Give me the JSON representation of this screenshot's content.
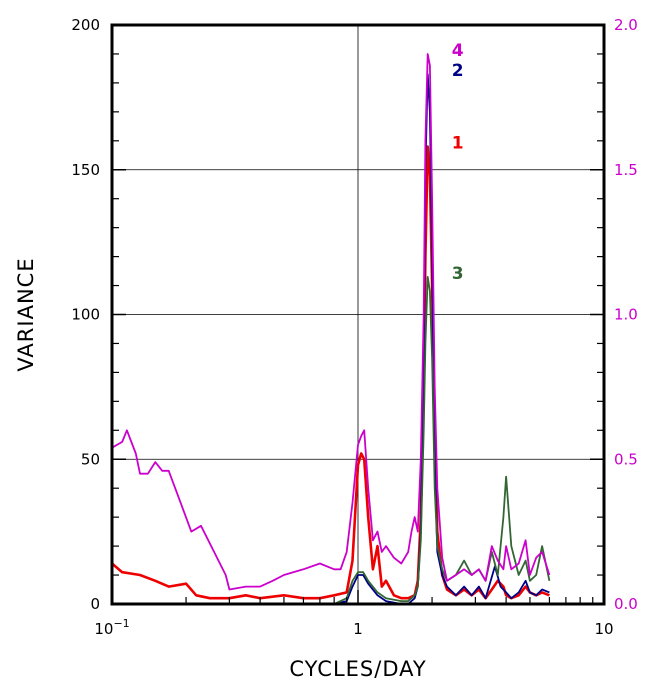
{
  "chart_data": {
    "type": "line",
    "xlabel": "CYCLES/DAY",
    "ylabel": "VARIANCE",
    "x_scale": "log",
    "xlim": [
      0.1,
      10
    ],
    "ylim": [
      0,
      200
    ],
    "ylim_right": [
      0,
      2.0
    ],
    "x_ticks": [
      {
        "value": 0.1,
        "label_base": "10",
        "label_exp": "−1"
      },
      {
        "value": 1,
        "label_base": "1",
        "label_exp": ""
      },
      {
        "value": 10,
        "label_base": "10",
        "label_exp": ""
      }
    ],
    "y_ticks_left": [
      {
        "value": 0,
        "label": "0"
      },
      {
        "value": 50,
        "label": "50"
      },
      {
        "value": 100,
        "label": "100"
      },
      {
        "value": 150,
        "label": "150"
      },
      {
        "value": 200,
        "label": "200"
      }
    ],
    "y_ticks_right": [
      {
        "value": 0,
        "label": "0.0"
      },
      {
        "value": 0.5,
        "label": "0.5"
      },
      {
        "value": 1.0,
        "label": "1.0"
      },
      {
        "value": 1.5,
        "label": "1.5"
      },
      {
        "value": 2.0,
        "label": "2.0"
      }
    ],
    "grid": true,
    "right_axis_color": "#cc00cc",
    "series": [
      {
        "label": "1",
        "color": "#ee0000",
        "axis": "left",
        "points": [
          [
            0.1,
            14
          ],
          [
            0.11,
            11
          ],
          [
            0.13,
            10
          ],
          [
            0.15,
            8
          ],
          [
            0.17,
            6
          ],
          [
            0.2,
            7
          ],
          [
            0.22,
            3
          ],
          [
            0.25,
            2
          ],
          [
            0.3,
            2
          ],
          [
            0.35,
            3
          ],
          [
            0.4,
            2
          ],
          [
            0.5,
            3
          ],
          [
            0.6,
            2
          ],
          [
            0.7,
            2
          ],
          [
            0.8,
            3
          ],
          [
            0.9,
            4
          ],
          [
            0.95,
            15
          ],
          [
            0.98,
            35
          ],
          [
            1.0,
            48
          ],
          [
            1.03,
            52
          ],
          [
            1.06,
            50
          ],
          [
            1.1,
            30
          ],
          [
            1.15,
            12
          ],
          [
            1.2,
            20
          ],
          [
            1.25,
            6
          ],
          [
            1.3,
            8
          ],
          [
            1.4,
            3
          ],
          [
            1.5,
            2
          ],
          [
            1.6,
            2
          ],
          [
            1.7,
            3
          ],
          [
            1.75,
            8
          ],
          [
            1.8,
            30
          ],
          [
            1.85,
            75
          ],
          [
            1.88,
            120
          ],
          [
            1.92,
            158
          ],
          [
            1.96,
            148
          ],
          [
            2.0,
            110
          ],
          [
            2.05,
            60
          ],
          [
            2.1,
            25
          ],
          [
            2.2,
            10
          ],
          [
            2.3,
            5
          ],
          [
            2.5,
            3
          ],
          [
            2.7,
            5
          ],
          [
            2.9,
            3
          ],
          [
            3.1,
            5
          ],
          [
            3.3,
            2
          ],
          [
            3.5,
            5
          ],
          [
            3.7,
            8
          ],
          [
            3.9,
            6
          ],
          [
            4.0,
            3
          ],
          [
            4.2,
            2
          ],
          [
            4.5,
            3
          ],
          [
            4.8,
            6
          ],
          [
            5.0,
            4
          ],
          [
            5.3,
            3
          ],
          [
            5.6,
            4
          ],
          [
            6.0,
            3
          ]
        ]
      },
      {
        "label": "2",
        "color": "#000088",
        "axis": "left",
        "points": [
          [
            0.1,
            0
          ],
          [
            0.2,
            0
          ],
          [
            0.3,
            0
          ],
          [
            0.5,
            0
          ],
          [
            0.7,
            0
          ],
          [
            0.8,
            0
          ],
          [
            0.9,
            1
          ],
          [
            0.95,
            6
          ],
          [
            1.0,
            10
          ],
          [
            1.05,
            10
          ],
          [
            1.1,
            7
          ],
          [
            1.2,
            3
          ],
          [
            1.3,
            1
          ],
          [
            1.5,
            0
          ],
          [
            1.6,
            0
          ],
          [
            1.7,
            2
          ],
          [
            1.75,
            6
          ],
          [
            1.8,
            25
          ],
          [
            1.85,
            80
          ],
          [
            1.88,
            150
          ],
          [
            1.92,
            183
          ],
          [
            1.96,
            170
          ],
          [
            2.0,
            120
          ],
          [
            2.05,
            50
          ],
          [
            2.1,
            18
          ],
          [
            2.2,
            10
          ],
          [
            2.3,
            6
          ],
          [
            2.5,
            3
          ],
          [
            2.7,
            6
          ],
          [
            2.9,
            3
          ],
          [
            3.1,
            6
          ],
          [
            3.3,
            2
          ],
          [
            3.6,
            13
          ],
          [
            3.8,
            6
          ],
          [
            4.0,
            4
          ],
          [
            4.2,
            2
          ],
          [
            4.5,
            4
          ],
          [
            4.8,
            8
          ],
          [
            5.0,
            4
          ],
          [
            5.3,
            3
          ],
          [
            5.6,
            5
          ],
          [
            6.0,
            4
          ]
        ]
      },
      {
        "label": "3",
        "color": "#336633",
        "axis": "left",
        "points": [
          [
            0.1,
            0
          ],
          [
            0.2,
            0
          ],
          [
            0.3,
            0
          ],
          [
            0.5,
            0
          ],
          [
            0.7,
            0
          ],
          [
            0.8,
            0
          ],
          [
            0.9,
            2
          ],
          [
            0.95,
            8
          ],
          [
            1.0,
            11
          ],
          [
            1.05,
            11
          ],
          [
            1.1,
            8
          ],
          [
            1.2,
            4
          ],
          [
            1.3,
            2
          ],
          [
            1.5,
            1
          ],
          [
            1.6,
            1
          ],
          [
            1.7,
            3
          ],
          [
            1.75,
            6
          ],
          [
            1.8,
            22
          ],
          [
            1.85,
            60
          ],
          [
            1.88,
            90
          ],
          [
            1.92,
            113
          ],
          [
            1.96,
            108
          ],
          [
            2.0,
            85
          ],
          [
            2.05,
            40
          ],
          [
            2.1,
            20
          ],
          [
            2.2,
            12
          ],
          [
            2.3,
            8
          ],
          [
            2.5,
            10
          ],
          [
            2.7,
            15
          ],
          [
            2.9,
            10
          ],
          [
            3.1,
            12
          ],
          [
            3.3,
            8
          ],
          [
            3.5,
            18
          ],
          [
            3.7,
            10
          ],
          [
            3.9,
            30
          ],
          [
            4.0,
            44
          ],
          [
            4.2,
            20
          ],
          [
            4.5,
            10
          ],
          [
            4.8,
            15
          ],
          [
            5.0,
            8
          ],
          [
            5.3,
            10
          ],
          [
            5.6,
            20
          ],
          [
            6.0,
            8
          ]
        ]
      },
      {
        "label": "4",
        "color": "#cc00cc",
        "axis": "right",
        "points": [
          [
            0.1,
            0.54
          ],
          [
            0.11,
            0.56
          ],
          [
            0.115,
            0.6
          ],
          [
            0.125,
            0.52
          ],
          [
            0.13,
            0.45
          ],
          [
            0.14,
            0.45
          ],
          [
            0.15,
            0.49
          ],
          [
            0.16,
            0.46
          ],
          [
            0.17,
            0.46
          ],
          [
            0.19,
            0.35
          ],
          [
            0.21,
            0.25
          ],
          [
            0.23,
            0.27
          ],
          [
            0.26,
            0.18
          ],
          [
            0.29,
            0.1
          ],
          [
            0.3,
            0.05
          ],
          [
            0.35,
            0.06
          ],
          [
            0.4,
            0.06
          ],
          [
            0.45,
            0.08
          ],
          [
            0.5,
            0.1
          ],
          [
            0.6,
            0.12
          ],
          [
            0.7,
            0.14
          ],
          [
            0.8,
            0.12
          ],
          [
            0.85,
            0.12
          ],
          [
            0.9,
            0.18
          ],
          [
            0.95,
            0.35
          ],
          [
            1.0,
            0.55
          ],
          [
            1.03,
            0.58
          ],
          [
            1.06,
            0.6
          ],
          [
            1.1,
            0.4
          ],
          [
            1.15,
            0.22
          ],
          [
            1.2,
            0.25
          ],
          [
            1.25,
            0.18
          ],
          [
            1.3,
            0.2
          ],
          [
            1.4,
            0.16
          ],
          [
            1.5,
            0.14
          ],
          [
            1.6,
            0.18
          ],
          [
            1.65,
            0.25
          ],
          [
            1.7,
            0.3
          ],
          [
            1.75,
            0.25
          ],
          [
            1.8,
            0.5
          ],
          [
            1.85,
            1.0
          ],
          [
            1.88,
            1.6
          ],
          [
            1.92,
            1.9
          ],
          [
            1.96,
            1.86
          ],
          [
            2.0,
            1.4
          ],
          [
            2.05,
            0.75
          ],
          [
            2.1,
            0.4
          ],
          [
            2.2,
            0.16
          ],
          [
            2.3,
            0.08
          ],
          [
            2.5,
            0.1
          ],
          [
            2.7,
            0.12
          ],
          [
            2.9,
            0.1
          ],
          [
            3.1,
            0.12
          ],
          [
            3.3,
            0.08
          ],
          [
            3.5,
            0.2
          ],
          [
            3.7,
            0.15
          ],
          [
            3.9,
            0.12
          ],
          [
            4.0,
            0.2
          ],
          [
            4.2,
            0.12
          ],
          [
            4.5,
            0.14
          ],
          [
            4.8,
            0.22
          ],
          [
            5.0,
            0.1
          ],
          [
            5.3,
            0.16
          ],
          [
            5.6,
            0.18
          ],
          [
            6.0,
            0.1
          ]
        ]
      }
    ]
  }
}
